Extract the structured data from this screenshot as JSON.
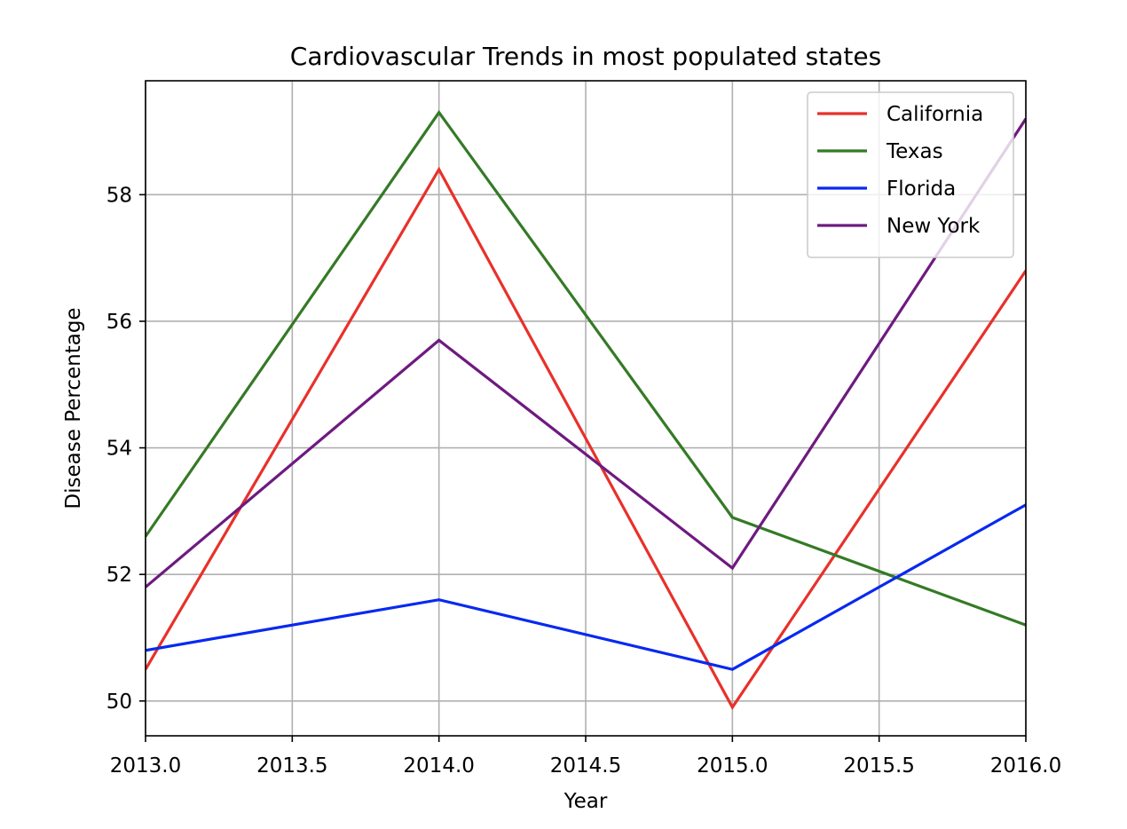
{
  "chart_data": {
    "type": "line",
    "title": "Cardiovascular Trends in most populated states",
    "xlabel": "Year",
    "ylabel": "Disease Percentage",
    "xlim": [
      2013.0,
      2016.0
    ],
    "ylim": [
      49.45,
      59.8
    ],
    "xticks": [
      2013.0,
      2013.5,
      2014.0,
      2014.5,
      2015.0,
      2015.5,
      2016.0
    ],
    "xtick_labels": [
      "2013.0",
      "2013.5",
      "2014.0",
      "2014.5",
      "2015.0",
      "2015.5",
      "2016.0"
    ],
    "yticks": [
      50,
      52,
      54,
      56,
      58
    ],
    "ytick_labels": [
      "50",
      "52",
      "54",
      "56",
      "58"
    ],
    "grid": true,
    "legend_position": "top-right",
    "x": [
      2013,
      2014,
      2015,
      2016
    ],
    "series": [
      {
        "name": "California",
        "color": "#e8312a",
        "values": [
          50.5,
          58.4,
          49.9,
          56.8
        ]
      },
      {
        "name": "Texas",
        "color": "#347a26",
        "values": [
          52.6,
          59.3,
          52.9,
          51.2
        ]
      },
      {
        "name": "Florida",
        "color": "#0829f0",
        "values": [
          50.8,
          51.6,
          50.5,
          53.1
        ]
      },
      {
        "name": "New York",
        "color": "#6e1a80",
        "values": [
          51.8,
          55.7,
          52.1,
          59.2
        ]
      }
    ]
  }
}
